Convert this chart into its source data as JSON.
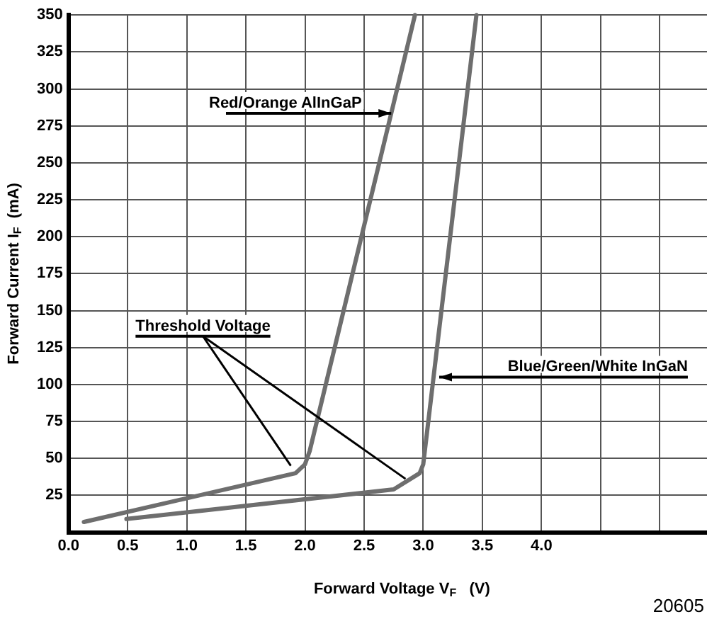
{
  "chart_data": {
    "type": "line",
    "xlabel": "Forward Voltage V$_{F}$   (V)",
    "ylabel": "Forward Current I$_{F}$  (mA)",
    "series": [
      {
        "name": "Red/Orange AlInGaP",
        "color": "#6e6e6e",
        "x": [
          0.13,
          1.92,
          2.0,
          2.04,
          2.93
        ],
        "values": [
          7,
          40,
          46,
          55,
          350
        ]
      },
      {
        "name": "Blue/Green/White InGaN",
        "color": "#6e6e6e",
        "x": [
          0.49,
          2.75,
          2.97,
          3.0,
          3.45
        ],
        "values": [
          9,
          29,
          40,
          46,
          350
        ]
      }
    ],
    "xlim": [
      0,
      5.4
    ],
    "xticks": [
      {
        "value": 0,
        "label": "0.0"
      },
      0.5,
      {
        "value": 1,
        "label": "1.0"
      },
      1.5,
      {
        "value": 2,
        "label": "2.0"
      },
      2.5,
      {
        "value": 3,
        "label": "3.0"
      },
      3.5,
      {
        "value": 4,
        "label": "4.0"
      },
      {
        "value": 4.5,
        "label": null
      },
      {
        "value": 5,
        "label": null
      }
    ],
    "ylim": [
      0,
      350
    ],
    "yticks": [
      {
        "value": 0,
        "label": null
      },
      25,
      50,
      75,
      100,
      125,
      150,
      175,
      200,
      225,
      250,
      275,
      300,
      325,
      350
    ],
    "annotations": [
      {
        "text": "Threshold Voltage",
        "x": 1.88,
        "y": 45
      },
      "20605"
    ],
    "grid": true,
    "legend": false,
    "marker": "none",
    "line_style": "solid"
  }
}
